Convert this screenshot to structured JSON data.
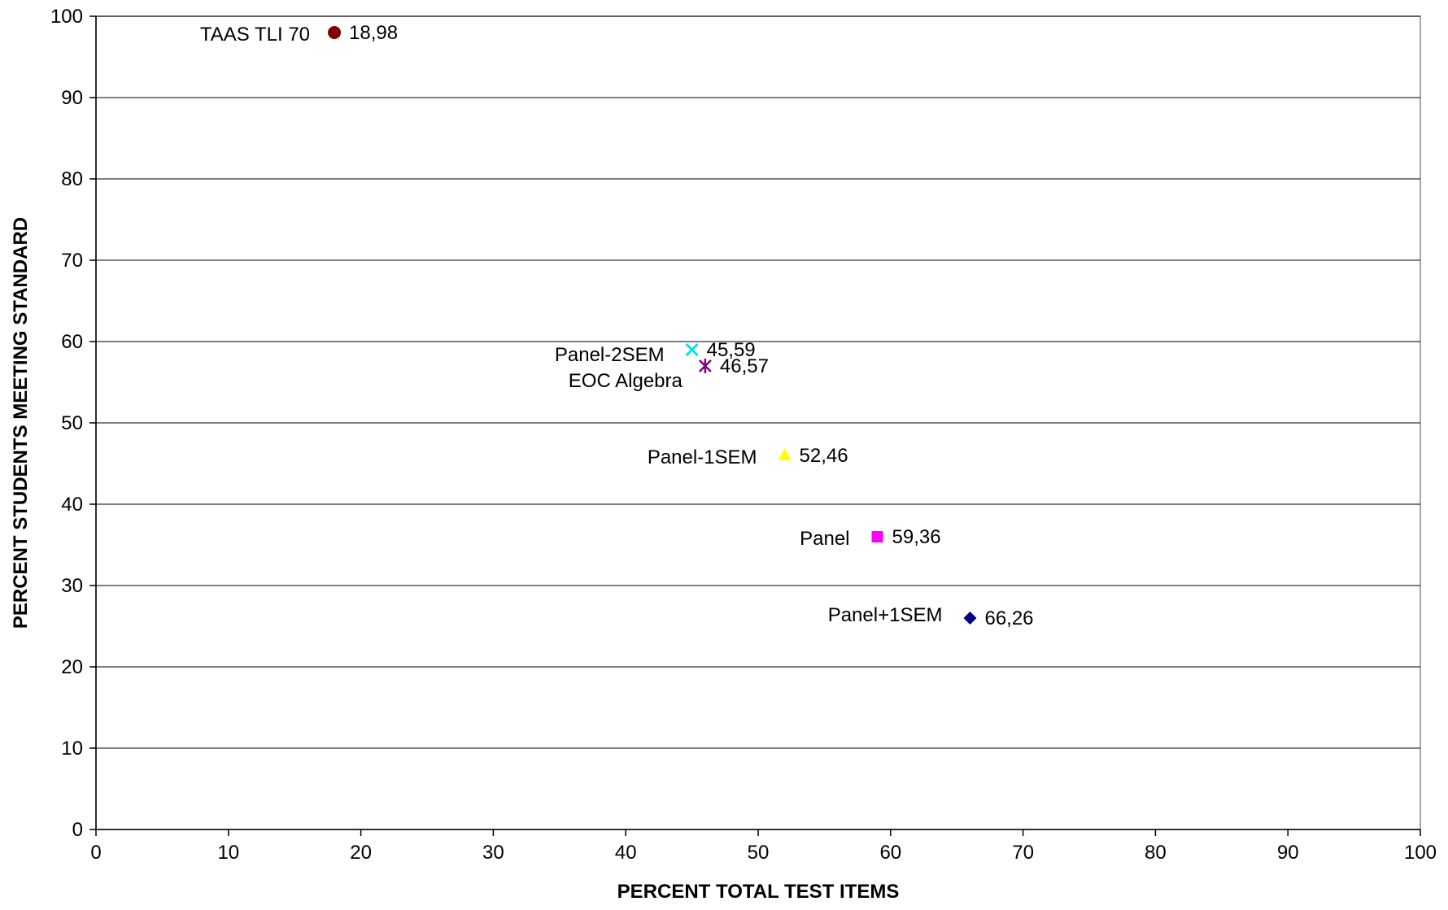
{
  "chart_data": {
    "type": "scatter",
    "title": "",
    "xlabel": "PERCENT TOTAL TEST ITEMS",
    "ylabel": "PERCENT STUDENTS MEETING STANDARD",
    "xlim": [
      0,
      100
    ],
    "ylim": [
      0,
      100
    ],
    "x_ticks": [
      0,
      10,
      20,
      30,
      40,
      50,
      60,
      70,
      80,
      90,
      100
    ],
    "y_ticks": [
      0,
      10,
      20,
      30,
      40,
      50,
      60,
      70,
      80,
      90,
      100
    ],
    "grid": "horizontal major gridlines",
    "legend": "none",
    "points": [
      {
        "name": "TAAS TLI 70",
        "x": 18,
        "y": 98,
        "value_label": "18,98",
        "marker": "circle",
        "color": "#800000",
        "name_side": "left"
      },
      {
        "name": "Panel-2SEM",
        "x": 45,
        "y": 59,
        "value_label": "45,59",
        "marker": "x",
        "color": "#00E5E5",
        "name_side": "left"
      },
      {
        "name": "EOC Algebra",
        "x": 46,
        "y": 57,
        "value_label": "46,57",
        "marker": "star",
        "color": "#800080",
        "name_side": "left-below"
      },
      {
        "name": "Panel-1SEM",
        "x": 52,
        "y": 46,
        "value_label": "52,46",
        "marker": "triangle",
        "color": "#FFFF00",
        "name_side": "left"
      },
      {
        "name": "Panel",
        "x": 59,
        "y": 36,
        "value_label": "59,36",
        "marker": "square",
        "color": "#FF00FF",
        "name_side": "left"
      },
      {
        "name": "Panel+1SEM",
        "x": 66,
        "y": 26,
        "value_label": "66,26",
        "marker": "diamond",
        "color": "#000080",
        "name_side": "left-above"
      }
    ]
  }
}
